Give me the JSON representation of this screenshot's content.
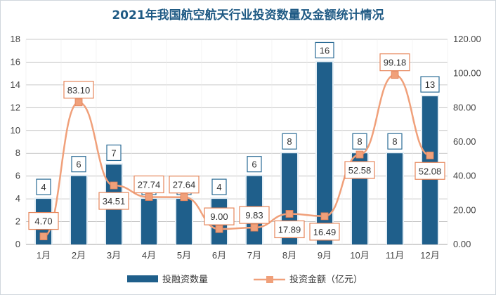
{
  "title": "2021年我国航空航天行业投资数量及金额统计情况",
  "colors": {
    "title": "#1f5a84",
    "bar": "#1f5f8b",
    "bar_label_border": "#2a6b95",
    "line": "#f0a07a",
    "line_label_border": "#e6865a",
    "grid": "#b8b8b8"
  },
  "chart_data": {
    "type": "bar",
    "categories": [
      "1月",
      "2月",
      "3月",
      "4月",
      "5月",
      "6月",
      "7月",
      "8月",
      "9月",
      "10月",
      "11月",
      "12月"
    ],
    "series": [
      {
        "name": "投融资数量",
        "type": "bar",
        "axis": "left",
        "values": [
          4,
          6,
          7,
          4,
          4,
          4,
          6,
          8,
          16,
          8,
          8,
          13
        ],
        "labels": [
          "4",
          "6",
          "7",
          "4",
          "4",
          "4",
          "6",
          "8",
          "16",
          "8",
          "8",
          "13"
        ]
      },
      {
        "name": "投资金额（亿元）",
        "type": "line",
        "axis": "right",
        "values": [
          4.7,
          83.1,
          34.51,
          27.74,
          27.64,
          9.0,
          9.83,
          17.89,
          16.49,
          52.58,
          99.18,
          52.08
        ],
        "labels": [
          "4.70",
          "83.10",
          "34.51",
          "27.74",
          "27.64",
          "9.00",
          "9.83",
          "17.89",
          "16.49",
          "52.58",
          "99.18",
          "52.08"
        ]
      }
    ],
    "y_left": {
      "min": 0,
      "max": 18,
      "ticks": [
        "0",
        "2",
        "4",
        "6",
        "8",
        "10",
        "12",
        "14",
        "16",
        "18"
      ]
    },
    "y_right": {
      "min": 0,
      "max": 120,
      "ticks": [
        "0.00",
        "20.00",
        "40.00",
        "60.00",
        "80.00",
        "100.00",
        "120.00"
      ]
    },
    "grid": true,
    "legend_position": "bottom"
  }
}
